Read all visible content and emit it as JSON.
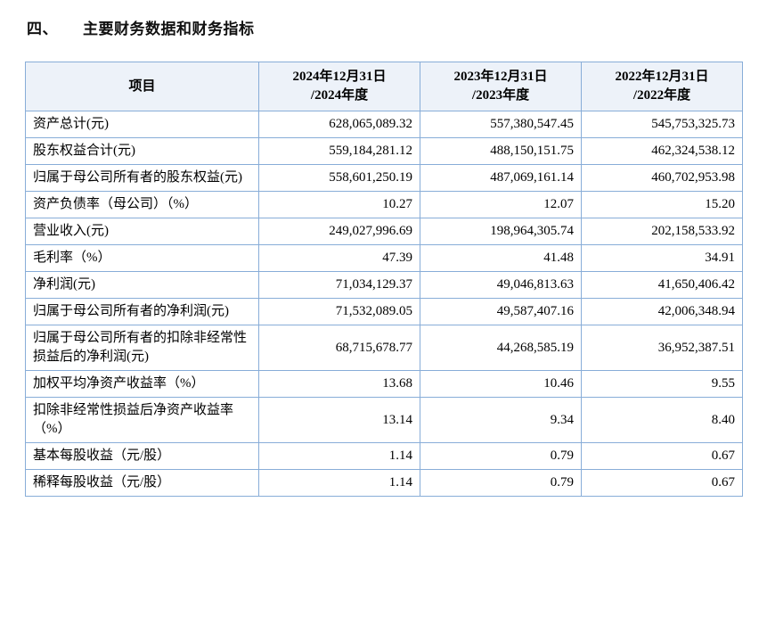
{
  "title": {
    "number": "四、",
    "text": "主要财务数据和财务指标"
  },
  "table": {
    "header": {
      "item": "项目",
      "cols": [
        {
          "line1": "2024年12月31日",
          "line2": "/2024年度"
        },
        {
          "line1": "2023年12月31日",
          "line2": "/2023年度"
        },
        {
          "line1": "2022年12月31日",
          "line2": "/2022年度"
        }
      ]
    },
    "rows": [
      {
        "label": "资产总计(元)",
        "values": [
          "628,065,089.32",
          "557,380,547.45",
          "545,753,325.73"
        ]
      },
      {
        "label": "股东权益合计(元)",
        "values": [
          "559,184,281.12",
          "488,150,151.75",
          "462,324,538.12"
        ]
      },
      {
        "label": "归属于母公司所有者的股东权益(元)",
        "values": [
          "558,601,250.19",
          "487,069,161.14",
          "460,702,953.98"
        ]
      },
      {
        "label": "资产负债率（母公司）（%）",
        "values": [
          "10.27",
          "12.07",
          "15.20"
        ]
      },
      {
        "label": "营业收入(元)",
        "values": [
          "249,027,996.69",
          "198,964,305.74",
          "202,158,533.92"
        ]
      },
      {
        "label": "毛利率（%）",
        "values": [
          "47.39",
          "41.48",
          "34.91"
        ]
      },
      {
        "label": "净利润(元)",
        "values": [
          "71,034,129.37",
          "49,046,813.63",
          "41,650,406.42"
        ]
      },
      {
        "label": "归属于母公司所有者的净利润(元)",
        "values": [
          "71,532,089.05",
          "49,587,407.16",
          "42,006,348.94"
        ]
      },
      {
        "label": "归属于母公司所有者的扣除非经常性损益后的净利润(元)",
        "values": [
          "68,715,678.77",
          "44,268,585.19",
          "36,952,387.51"
        ]
      },
      {
        "label": "加权平均净资产收益率（%）",
        "values": [
          "13.68",
          "10.46",
          "9.55"
        ]
      },
      {
        "label": "扣除非经常性损益后净资产收益率（%）",
        "values": [
          "13.14",
          "9.34",
          "8.40"
        ]
      },
      {
        "label": "基本每股收益（元/股）",
        "values": [
          "1.14",
          "0.79",
          "0.67"
        ]
      },
      {
        "label": "稀释每股收益（元/股）",
        "values": [
          "1.14",
          "0.79",
          "0.67"
        ]
      }
    ]
  },
  "colors": {
    "table_border": "#88add8",
    "header_bg": "#edf2f9"
  }
}
